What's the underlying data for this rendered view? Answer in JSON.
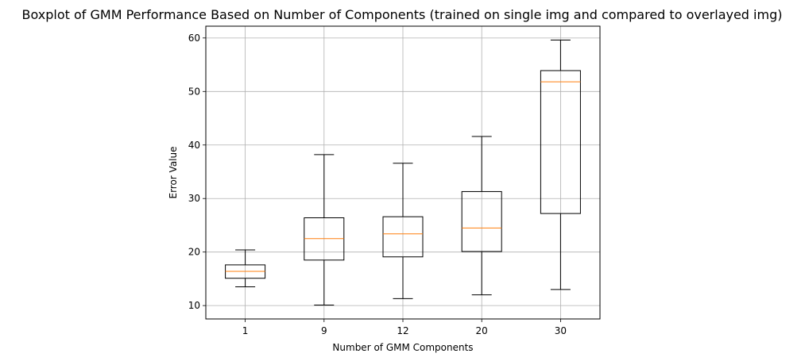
{
  "chart_data": {
    "type": "boxplot",
    "title": "Boxplot of GMM Performance Based on Number of Components (trained on single img and compared to overlayed img)",
    "xlabel": "Number of GMM Components",
    "ylabel": "Error Value",
    "categories": [
      "1",
      "9",
      "12",
      "20",
      "30"
    ],
    "ylim": [
      7.5,
      62.2
    ],
    "yticks": [
      10,
      20,
      30,
      40,
      50,
      60
    ],
    "grid": true,
    "boxes": [
      {
        "category": "1",
        "whisker_low": 13.5,
        "q1": 15.1,
        "median": 16.4,
        "q3": 17.6,
        "whisker_high": 20.4
      },
      {
        "category": "9",
        "whisker_low": 10.1,
        "q1": 18.5,
        "median": 22.5,
        "q3": 26.4,
        "whisker_high": 38.2
      },
      {
        "category": "12",
        "whisker_low": 11.3,
        "q1": 19.1,
        "median": 23.4,
        "q3": 26.6,
        "whisker_high": 36.6
      },
      {
        "category": "20",
        "whisker_low": 12.0,
        "q1": 20.1,
        "median": 24.5,
        "q3": 31.3,
        "whisker_high": 41.6
      },
      {
        "category": "30",
        "whisker_low": 13.0,
        "q1": 27.2,
        "median": 51.8,
        "q3": 53.9,
        "whisker_high": 59.6
      }
    ],
    "colors": {
      "box": "#000000",
      "median": "#ff7f0e",
      "grid": "#b0b0b0"
    }
  }
}
